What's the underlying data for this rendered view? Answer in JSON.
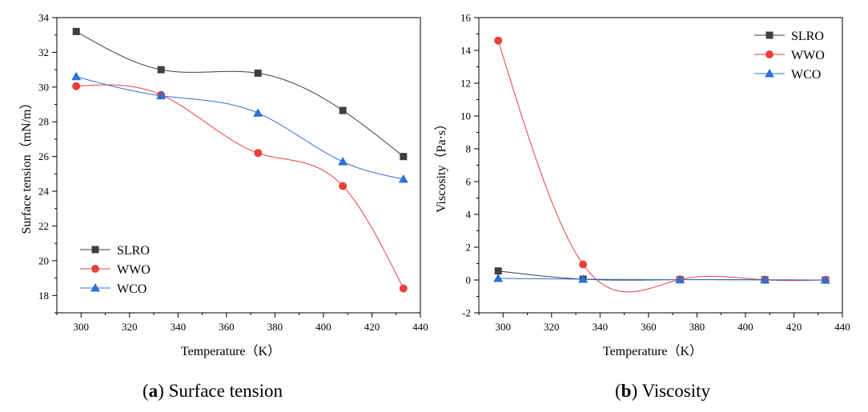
{
  "series_styles": [
    {
      "name": "SLRO",
      "color": "#3f3f3f",
      "marker": "square-icon"
    },
    {
      "name": "WWO",
      "color": "#e8413c",
      "marker": "circle-icon"
    },
    {
      "name": "WCO",
      "color": "#2f6fd6",
      "marker": "triangle-icon"
    }
  ],
  "chart_data": [
    {
      "type": "line",
      "title": "Surface tension",
      "caption_letter": "a",
      "caption_text": "Surface tension",
      "xlabel": "Temperature（K）",
      "ylabel": "Surface tension（mN/m）",
      "xlim": [
        290,
        440
      ],
      "ylim": [
        17,
        34
      ],
      "xticks": [
        300,
        320,
        340,
        360,
        380,
        400,
        420,
        440
      ],
      "yticks": [
        18,
        20,
        22,
        24,
        26,
        28,
        30,
        32,
        34
      ],
      "x": [
        298,
        333,
        373,
        408,
        433
      ],
      "legend": "bottom-left",
      "series": [
        {
          "name": "SLRO",
          "values": [
            33.2,
            31.0,
            30.8,
            28.65,
            26.0
          ]
        },
        {
          "name": "WWO",
          "values": [
            30.05,
            29.55,
            26.2,
            24.3,
            18.4
          ]
        },
        {
          "name": "WCO",
          "values": [
            30.6,
            29.5,
            28.5,
            25.7,
            24.7
          ]
        }
      ]
    },
    {
      "type": "line",
      "title": "Viscosity",
      "caption_letter": "b",
      "caption_text": "Viscosity",
      "xlabel": "Temperature（K）",
      "ylabel": "Viscosity（Pa·s）",
      "xlim": [
        290,
        440
      ],
      "ylim": [
        -2,
        16
      ],
      "xticks": [
        300,
        320,
        340,
        360,
        380,
        400,
        420,
        440
      ],
      "yticks": [
        -2,
        0,
        2,
        4,
        6,
        8,
        10,
        12,
        14,
        16
      ],
      "x": [
        298,
        333,
        373,
        408,
        433
      ],
      "legend": "top-right",
      "series": [
        {
          "name": "SLRO",
          "values": [
            0.55,
            0.05,
            0.02,
            0.01,
            0.0
          ]
        },
        {
          "name": "WWO",
          "values": [
            14.6,
            0.95,
            0.03,
            0.01,
            0.0
          ]
        },
        {
          "name": "WCO",
          "values": [
            0.1,
            0.05,
            0.02,
            0.01,
            0.0
          ]
        }
      ]
    }
  ]
}
